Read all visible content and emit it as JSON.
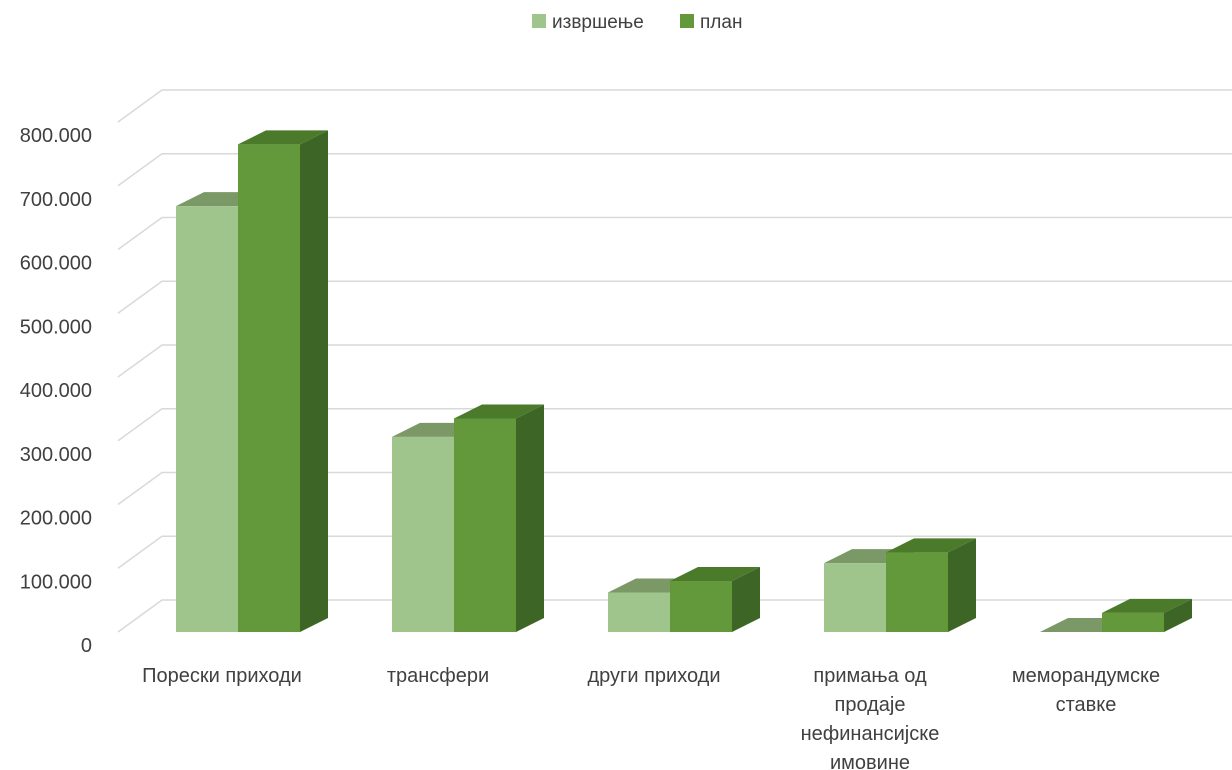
{
  "chart_data": {
    "type": "bar",
    "title": "",
    "categories": [
      [
        "Порески приходи"
      ],
      [
        "трансфери"
      ],
      [
        "други приходи"
      ],
      [
        "примања од",
        "продаје",
        "нефинансијске",
        "имовине"
      ],
      [
        "меморандумске",
        "ставке"
      ]
    ],
    "series": [
      {
        "name": "извршење",
        "values": [
          668000,
          306000,
          62000,
          108000,
          0
        ]
      },
      {
        "name": "план",
        "values": [
          765000,
          335000,
          80000,
          125000,
          30000
        ]
      }
    ],
    "yticks": [
      "0",
      "100.000",
      "200.000",
      "300.000",
      "400.000",
      "500.000",
      "600.000",
      "700.000",
      "800.000"
    ],
    "ylim": [
      0,
      800000
    ],
    "grid": true,
    "legend_position": "top-center",
    "colors": {
      "series": [
        "#a0c58c",
        "#63993a"
      ],
      "series_top": [
        "#7a9966",
        "#4a7a2a"
      ],
      "series_side": [
        "#5e7f4c",
        "#3d6525"
      ],
      "grid": "#d9d9d9",
      "text": "#404040"
    }
  }
}
